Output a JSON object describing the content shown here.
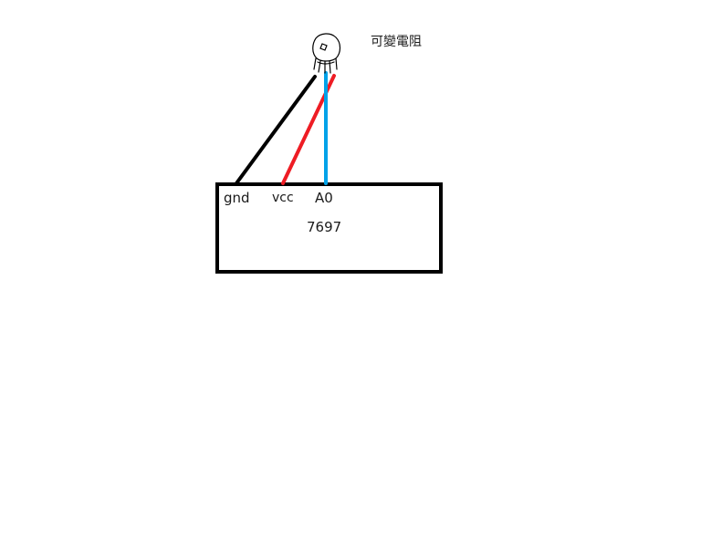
{
  "diagram": {
    "component_label": "可變電阻",
    "board_label": "7697",
    "pins": {
      "gnd": "gnd",
      "vcc": "vcc",
      "a0": "A0"
    },
    "wire_colors": {
      "gnd": "#000000",
      "vcc": "#ee1c24",
      "a0": "#00a2e8"
    }
  }
}
